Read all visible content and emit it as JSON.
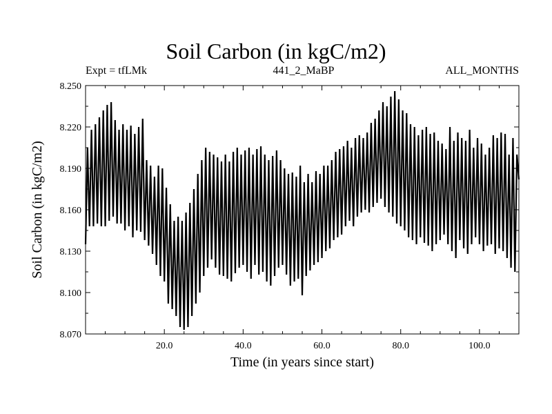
{
  "chart_data": {
    "type": "line",
    "title": "Soil Carbon (in kgC/m2)",
    "experiment": "Expt = tfLMk",
    "run_id": "441_2_MaBP",
    "months": "ALL_MONTHS",
    "xlabel": "Time (in years since start)",
    "ylabel": "Soil Carbon (in kgC/m2)",
    "xlim": [
      0,
      110
    ],
    "ylim": [
      8.07,
      8.25
    ],
    "x_ticks": [
      20,
      40,
      60,
      80,
      100
    ],
    "x_tick_labels": [
      "20.0",
      "40.0",
      "60.0",
      "80.0",
      "100.0"
    ],
    "y_ticks": [
      8.07,
      8.1,
      8.13,
      8.16,
      8.19,
      8.22,
      8.25
    ],
    "y_tick_labels": [
      "8.070",
      "8.100",
      "8.130",
      "8.160",
      "8.190",
      "8.220",
      "8.250"
    ],
    "sampling": "annual cycle (high/low per year)",
    "annual_max": [
      8.205,
      8.218,
      8.222,
      8.227,
      8.232,
      8.236,
      8.238,
      8.225,
      8.218,
      8.222,
      8.218,
      8.221,
      8.215,
      8.22,
      8.226,
      8.196,
      8.192,
      8.184,
      8.192,
      8.19,
      8.176,
      8.164,
      8.152,
      8.155,
      8.152,
      8.158,
      8.165,
      8.175,
      8.186,
      8.196,
      8.205,
      8.202,
      8.2,
      8.198,
      8.195,
      8.2,
      8.195,
      8.202,
      8.205,
      8.2,
      8.203,
      8.205,
      8.2,
      8.204,
      8.206,
      8.2,
      8.196,
      8.199,
      8.203,
      8.196,
      8.19,
      8.186,
      8.187,
      8.184,
      8.192,
      8.18,
      8.186,
      8.18,
      8.188,
      8.186,
      8.192,
      8.192,
      8.196,
      8.202,
      8.204,
      8.206,
      8.21,
      8.205,
      8.212,
      8.214,
      8.212,
      8.216,
      8.223,
      8.226,
      8.232,
      8.238,
      8.235,
      8.242,
      8.246,
      8.24,
      8.232,
      8.23,
      8.222,
      8.22,
      8.214,
      8.218,
      8.22,
      8.215,
      8.216,
      8.21,
      8.208,
      8.204,
      8.22,
      8.21,
      8.216,
      8.212,
      8.21,
      8.218,
      8.205,
      8.212,
      8.208,
      8.2,
      8.205,
      8.214,
      8.212,
      8.216,
      8.215,
      8.2,
      8.212,
      8.2
    ],
    "annual_min": [
      8.135,
      8.148,
      8.148,
      8.15,
      8.148,
      8.148,
      8.152,
      8.155,
      8.15,
      8.15,
      8.145,
      8.148,
      8.14,
      8.145,
      8.144,
      8.138,
      8.134,
      8.128,
      8.12,
      8.112,
      8.108,
      8.092,
      8.088,
      8.083,
      8.075,
      8.073,
      8.075,
      8.083,
      8.092,
      8.1,
      8.112,
      8.118,
      8.124,
      8.118,
      8.113,
      8.112,
      8.11,
      8.108,
      8.114,
      8.118,
      8.12,
      8.115,
      8.11,
      8.12,
      8.113,
      8.115,
      8.108,
      8.105,
      8.112,
      8.118,
      8.12,
      8.113,
      8.105,
      8.108,
      8.11,
      8.098,
      8.112,
      8.116,
      8.12,
      8.122,
      8.125,
      8.13,
      8.132,
      8.138,
      8.14,
      8.142,
      8.148,
      8.152,
      8.148,
      8.155,
      8.158,
      8.16,
      8.158,
      8.162,
      8.165,
      8.168,
      8.162,
      8.158,
      8.155,
      8.15,
      8.148,
      8.145,
      8.14,
      8.138,
      8.135,
      8.14,
      8.136,
      8.134,
      8.13,
      8.135,
      8.138,
      8.142,
      8.135,
      8.13,
      8.125,
      8.138,
      8.132,
      8.128,
      8.135,
      8.14,
      8.135,
      8.13,
      8.134,
      8.135,
      8.128,
      8.132,
      8.13,
      8.125,
      8.118,
      8.115
    ],
    "end_value": 8.182
  }
}
